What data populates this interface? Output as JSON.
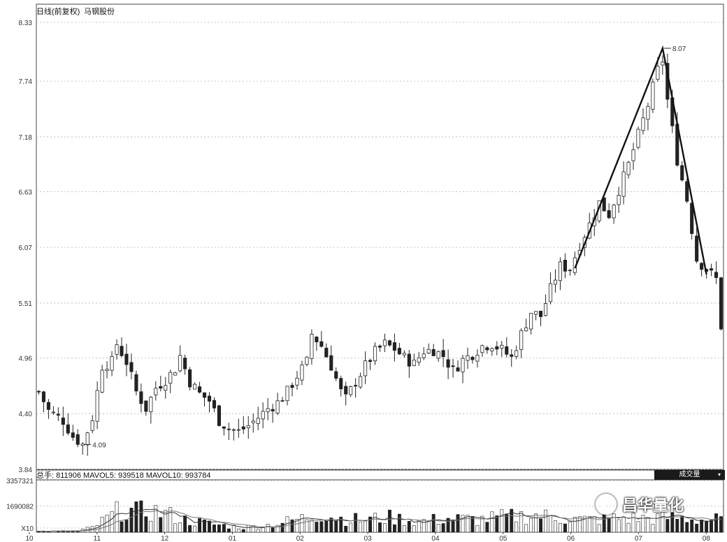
{
  "header": {
    "price_title": "日线(前复权)",
    "price_subtitle": "马钢股份",
    "volume_readout": "总手: 811906  MAVOL5: 939518  MAVOL10: 993784"
  },
  "volume_indicator_button": {
    "label": "成交量",
    "chevron": "▾"
  },
  "watermark": {
    "text": "昌华量化",
    "icon": "wechat-icon"
  },
  "colors": {
    "up": "#ffffff",
    "down": "#222222",
    "grid": "#b5b5b5",
    "trend": "#111111",
    "ma": "#333333"
  },
  "chart_data": [
    {
      "type": "candlestick",
      "ylim": [
        3.84,
        8.33
      ],
      "y_ticks": [
        "8.33",
        "7.74",
        "7.18",
        "6.63",
        "6.07",
        "5.51",
        "4.96",
        "4.40",
        "3.84"
      ],
      "x_ticks": [
        "10",
        "11",
        "12",
        "01",
        "02",
        "03",
        "04",
        "05",
        "06",
        "07",
        "08"
      ],
      "annotations": [
        {
          "text": "8.07",
          "x": 128,
          "y": 8.07
        },
        {
          "text": "4.09",
          "x": 9,
          "y": 4.09
        }
      ],
      "trendline": [
        {
          "x": 110,
          "y": 5.86
        },
        {
          "x": 128,
          "y": 8.07
        },
        {
          "x": 137,
          "y": 5.8
        }
      ],
      "price_anchors": [
        [
          0,
          4.62
        ],
        [
          2,
          4.43
        ],
        [
          5,
          4.33
        ],
        [
          7,
          4.17
        ],
        [
          9,
          4.09
        ],
        [
          11,
          4.36
        ],
        [
          13,
          4.88
        ],
        [
          15,
          4.92
        ],
        [
          16,
          5.1
        ],
        [
          18,
          4.92
        ],
        [
          20,
          4.62
        ],
        [
          22,
          4.45
        ],
        [
          24,
          4.66
        ],
        [
          26,
          4.74
        ],
        [
          28,
          4.85
        ],
        [
          29,
          4.98
        ],
        [
          31,
          4.72
        ],
        [
          33,
          4.6
        ],
        [
          35,
          4.53
        ],
        [
          37,
          4.33
        ],
        [
          39,
          4.25
        ],
        [
          41,
          4.22
        ],
        [
          43,
          4.28
        ],
        [
          45,
          4.36
        ],
        [
          47,
          4.45
        ],
        [
          49,
          4.51
        ],
        [
          51,
          4.62
        ],
        [
          53,
          4.78
        ],
        [
          55,
          4.92
        ],
        [
          56,
          5.2
        ],
        [
          58,
          5.08
        ],
        [
          60,
          4.88
        ],
        [
          62,
          4.62
        ],
        [
          63,
          4.55
        ],
        [
          65,
          4.72
        ],
        [
          67,
          4.88
        ],
        [
          69,
          5.02
        ],
        [
          71,
          5.1
        ],
        [
          73,
          5.05
        ],
        [
          75,
          4.96
        ],
        [
          77,
          4.9
        ],
        [
          79,
          5.03
        ],
        [
          81,
          5.04
        ],
        [
          83,
          4.98
        ],
        [
          85,
          4.83
        ],
        [
          87,
          4.94
        ],
        [
          89,
          5.0
        ],
        [
          91,
          5.08
        ],
        [
          93,
          5.1
        ],
        [
          95,
          5.04
        ],
        [
          97,
          4.96
        ],
        [
          99,
          5.2
        ],
        [
          101,
          5.42
        ],
        [
          103,
          5.38
        ],
        [
          105,
          5.65
        ],
        [
          107,
          5.88
        ],
        [
          109,
          5.86
        ],
        [
          111,
          6.1
        ],
        [
          113,
          6.3
        ],
        [
          115,
          6.52
        ],
        [
          117,
          6.4
        ],
        [
          119,
          6.65
        ],
        [
          121,
          6.9
        ],
        [
          123,
          7.2
        ],
        [
          125,
          7.5
        ],
        [
          127,
          7.85
        ],
        [
          128,
          7.95
        ],
        [
          129,
          7.55
        ],
        [
          131,
          6.95
        ],
        [
          133,
          6.55
        ],
        [
          135,
          5.95
        ],
        [
          137,
          5.85
        ],
        [
          139,
          5.75
        ],
        [
          140,
          5.28
        ]
      ],
      "n_bars": 141
    },
    {
      "type": "bar",
      "title": "成交量",
      "y_ticks": [
        "3357321",
        "1690082",
        "X10"
      ],
      "ylim": [
        0,
        3357321
      ],
      "volume_anchors": [
        [
          0,
          60000
        ],
        [
          8,
          80000
        ],
        [
          11,
          300000
        ],
        [
          14,
          900000
        ],
        [
          17,
          1500000
        ],
        [
          20,
          1300000
        ],
        [
          23,
          1400000
        ],
        [
          26,
          1200000
        ],
        [
          30,
          800000
        ],
        [
          36,
          500000
        ],
        [
          42,
          300000
        ],
        [
          48,
          500000
        ],
        [
          54,
          900000
        ],
        [
          58,
          1200000
        ],
        [
          62,
          900000
        ],
        [
          66,
          800000
        ],
        [
          72,
          950000
        ],
        [
          78,
          700000
        ],
        [
          84,
          900000
        ],
        [
          90,
          800000
        ],
        [
          96,
          1000000
        ],
        [
          102,
          1100000
        ],
        [
          108,
          900000
        ],
        [
          112,
          800000
        ],
        [
          118,
          900000
        ],
        [
          124,
          900000
        ],
        [
          130,
          950000
        ],
        [
          136,
          811906
        ]
      ],
      "series": [
        {
          "name": "MAVOL5",
          "value": 939518
        },
        {
          "name": "MAVOL10",
          "value": 993784
        }
      ]
    }
  ]
}
